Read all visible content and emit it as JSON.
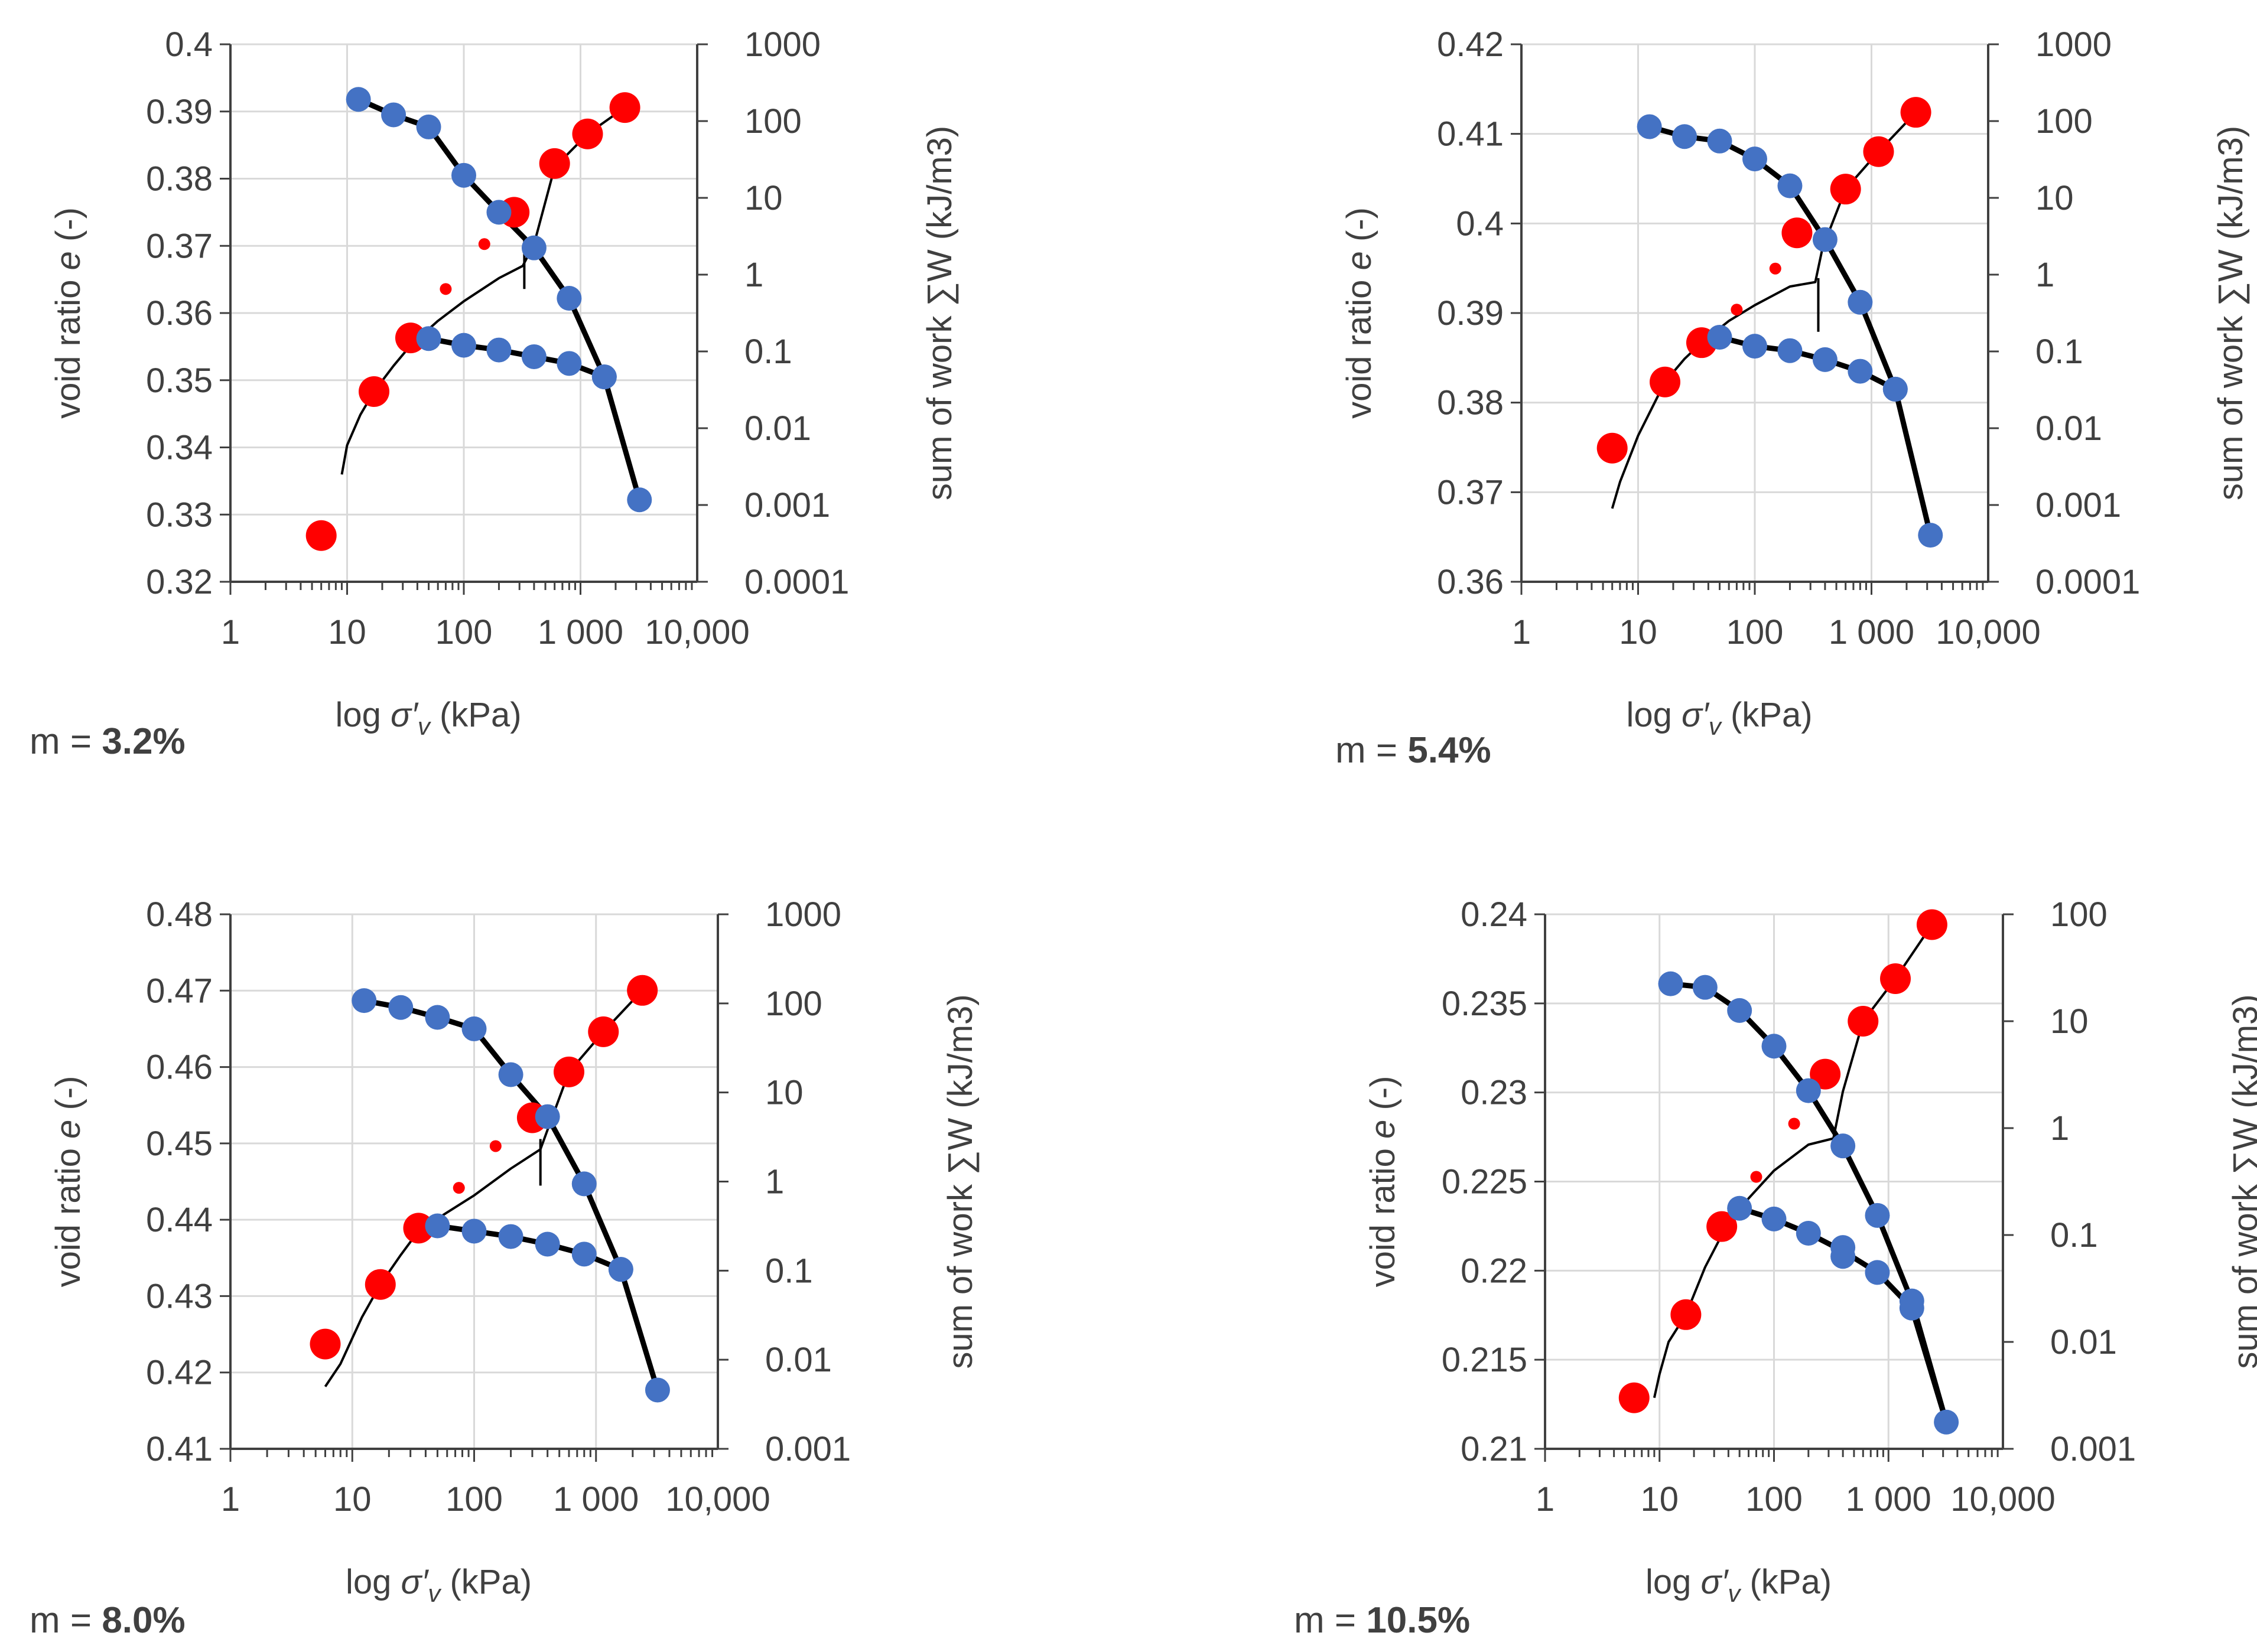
{
  "chart_data": [
    {
      "type": "scatter",
      "m_prefix": "m = ",
      "m_value": "3.2%",
      "xlabel_prefix": "log ",
      "xlabel_symbol": "σ′",
      "xlabel_sub": "v",
      "xlabel_unit": " (kPa)",
      "ylabel_prefix": "void ratio ",
      "ylabel_symbol": "e",
      "ylabel_unit": " (-)",
      "y2label": "sum of work ∑W (kJ/m3)",
      "x_ticks": [
        {
          "v": 1,
          "label": "1"
        },
        {
          "v": 10,
          "label": "10"
        },
        {
          "v": 100,
          "label": "100"
        },
        {
          "v": 1000,
          "label": "1 000"
        },
        {
          "v": 10000,
          "label": "10,000"
        }
      ],
      "xlim": [
        1,
        10000
      ],
      "ylim": [
        0.32,
        0.4
      ],
      "y_ticks": [
        "0.32",
        "0.33",
        "0.34",
        "0.35",
        "0.36",
        "0.37",
        "0.38",
        "0.39",
        "0.4"
      ],
      "y2lim": [
        0.0001,
        1000
      ],
      "y2_ticks": [
        "0.0001",
        "0.001",
        "0.01",
        "0.1",
        "1",
        "10",
        "100",
        "1000"
      ],
      "void_ratio_points": [
        [
          12.5,
          0.3918
        ],
        [
          25,
          0.3895
        ],
        [
          50,
          0.3877
        ],
        [
          100,
          0.3805
        ],
        [
          200,
          0.375
        ],
        [
          400,
          0.3697
        ],
        [
          800,
          0.3622
        ],
        [
          1600,
          0.3505
        ],
        [
          3200,
          0.3322
        ],
        [
          1600,
          0.3505
        ],
        [
          800,
          0.3525
        ],
        [
          400,
          0.3535
        ],
        [
          200,
          0.3545
        ],
        [
          100,
          0.3552
        ],
        [
          50,
          0.3562
        ]
      ],
      "void_ratio_line": [
        [
          12.5,
          0.3918
        ],
        [
          25,
          0.3895
        ],
        [
          50,
          0.3877
        ],
        [
          100,
          0.3805
        ],
        [
          200,
          0.375
        ],
        [
          400,
          0.3697
        ],
        [
          800,
          0.3622
        ],
        [
          1600,
          0.3505
        ],
        [
          3200,
          0.3322
        ],
        [
          1600,
          0.3505
        ],
        [
          800,
          0.3525
        ],
        [
          400,
          0.3535
        ],
        [
          200,
          0.3545
        ],
        [
          100,
          0.3552
        ],
        [
          50,
          0.3562
        ]
      ],
      "work_points": [
        [
          6,
          0.0004
        ],
        [
          17,
          0.03
        ],
        [
          35,
          0.15
        ],
        [
          270,
          6.5
        ],
        [
          600,
          28
        ],
        [
          1150,
          68
        ],
        [
          2400,
          150
        ]
      ],
      "work_small_points": [
        [
          70,
          0.65
        ],
        [
          150,
          2.5
        ]
      ],
      "work_curve": [
        [
          9,
          0.0025
        ],
        [
          10,
          0.006
        ],
        [
          13,
          0.015
        ],
        [
          17,
          0.03
        ],
        [
          25,
          0.065
        ],
        [
          35,
          0.12
        ],
        [
          60,
          0.25
        ],
        [
          100,
          0.45
        ],
        [
          200,
          0.9
        ],
        [
          320,
          1.3
        ],
        [
          400,
          2.5
        ],
        [
          600,
          25
        ],
        [
          1150,
          68
        ],
        [
          2400,
          150
        ]
      ],
      "work_tangent": [
        [
          330,
          0.65
        ],
        [
          330,
          3.0
        ]
      ]
    },
    {
      "type": "scatter",
      "m_prefix": "m = ",
      "m_value": "5.4%",
      "xlabel_prefix": "log ",
      "xlabel_symbol": "σ′",
      "xlabel_sub": "v",
      "xlabel_unit": " (kPa)",
      "ylabel_prefix": "void ratio ",
      "ylabel_symbol": "e",
      "ylabel_unit": " (-)",
      "y2label": "sum of work ∑W (kJ/m3)",
      "x_ticks": [
        {
          "v": 1,
          "label": "1"
        },
        {
          "v": 10,
          "label": "10"
        },
        {
          "v": 100,
          "label": "100"
        },
        {
          "v": 1000,
          "label": "1 000"
        },
        {
          "v": 10000,
          "label": "10,000"
        }
      ],
      "xlim": [
        1,
        10000
      ],
      "ylim": [
        0.36,
        0.42
      ],
      "y_ticks": [
        "0.36",
        "0.37",
        "0.38",
        "0.39",
        "0.4",
        "0.41",
        "0.42"
      ],
      "y2lim": [
        0.0001,
        1000
      ],
      "y2_ticks": [
        "0.0001",
        "0.001",
        "0.01",
        "0.1",
        "1",
        "10",
        "100",
        "1000"
      ],
      "void_ratio_points": [
        [
          12.5,
          0.4108
        ],
        [
          25,
          0.4097
        ],
        [
          50,
          0.4092
        ],
        [
          100,
          0.4072
        ],
        [
          200,
          0.4042
        ],
        [
          400,
          0.3982
        ],
        [
          800,
          0.3912
        ],
        [
          1600,
          0.3815
        ],
        [
          3200,
          0.3652
        ],
        [
          1600,
          0.3815
        ],
        [
          800,
          0.3835
        ],
        [
          400,
          0.3848
        ],
        [
          200,
          0.3858
        ],
        [
          100,
          0.3863
        ],
        [
          50,
          0.3873
        ]
      ],
      "void_ratio_line": [
        [
          12.5,
          0.4108
        ],
        [
          25,
          0.4097
        ],
        [
          50,
          0.4092
        ],
        [
          100,
          0.4072
        ],
        [
          200,
          0.4042
        ],
        [
          400,
          0.3982
        ],
        [
          800,
          0.3912
        ],
        [
          1600,
          0.3815
        ],
        [
          3200,
          0.3652
        ],
        [
          1600,
          0.3815
        ],
        [
          800,
          0.3835
        ],
        [
          400,
          0.3848
        ],
        [
          200,
          0.3858
        ],
        [
          100,
          0.3863
        ],
        [
          50,
          0.3873
        ]
      ],
      "work_points": [
        [
          6,
          0.0055
        ],
        [
          17,
          0.04
        ],
        [
          35,
          0.13
        ],
        [
          230,
          3.5
        ],
        [
          600,
          13
        ],
        [
          1150,
          40
        ],
        [
          2400,
          130
        ]
      ],
      "work_small_points": [
        [
          70,
          0.35
        ],
        [
          150,
          1.2
        ]
      ],
      "work_curve": [
        [
          6,
          0.0009
        ],
        [
          7,
          0.002
        ],
        [
          10,
          0.008
        ],
        [
          17,
          0.04
        ],
        [
          25,
          0.08
        ],
        [
          35,
          0.13
        ],
        [
          60,
          0.25
        ],
        [
          100,
          0.4
        ],
        [
          200,
          0.7
        ],
        [
          330,
          0.8
        ],
        [
          380,
          2.2
        ],
        [
          600,
          13
        ],
        [
          1150,
          40
        ],
        [
          2400,
          130
        ]
      ],
      "work_tangent": [
        [
          350,
          0.18
        ],
        [
          350,
          0.9
        ]
      ]
    },
    {
      "type": "scatter",
      "m_prefix": "m = ",
      "m_value": "8.0%",
      "xlabel_prefix": "log ",
      "xlabel_symbol": "σ′",
      "xlabel_sub": "v",
      "xlabel_unit": " (kPa)",
      "ylabel_prefix": "void ratio ",
      "ylabel_symbol": "e",
      "ylabel_unit": " (-)",
      "y2label": "sum of work ∑W (kJ/m3)",
      "x_ticks": [
        {
          "v": 1,
          "label": "1"
        },
        {
          "v": 10,
          "label": "10"
        },
        {
          "v": 100,
          "label": "100"
        },
        {
          "v": 1000,
          "label": "1 000"
        },
        {
          "v": 10000,
          "label": "10,000"
        }
      ],
      "xlim": [
        1,
        10000
      ],
      "ylim": [
        0.41,
        0.48
      ],
      "y_ticks": [
        "0.41",
        "0.42",
        "0.43",
        "0.44",
        "0.45",
        "0.46",
        "0.47",
        "0.48"
      ],
      "y2lim": [
        0.001,
        1000
      ],
      "y2_ticks": [
        "0.001",
        "0.01",
        "0.1",
        "1",
        "10",
        "100",
        "1000"
      ],
      "void_ratio_points": [
        [
          12.5,
          0.4687
        ],
        [
          25,
          0.4678
        ],
        [
          50,
          0.4665
        ],
        [
          100,
          0.465
        ],
        [
          200,
          0.459
        ],
        [
          400,
          0.4535
        ],
        [
          800,
          0.4447
        ],
        [
          1600,
          0.4335
        ],
        [
          3200,
          0.4177
        ],
        [
          1600,
          0.4335
        ],
        [
          800,
          0.4355
        ],
        [
          400,
          0.4368
        ],
        [
          200,
          0.4378
        ],
        [
          100,
          0.4385
        ],
        [
          50,
          0.4392
        ]
      ],
      "void_ratio_line": [
        [
          12.5,
          0.4687
        ],
        [
          25,
          0.4678
        ],
        [
          50,
          0.4665
        ],
        [
          100,
          0.465
        ],
        [
          200,
          0.459
        ],
        [
          400,
          0.4535
        ],
        [
          800,
          0.4447
        ],
        [
          1600,
          0.4335
        ],
        [
          3200,
          0.4177
        ],
        [
          1600,
          0.4335
        ],
        [
          800,
          0.4355
        ],
        [
          400,
          0.4368
        ],
        [
          200,
          0.4378
        ],
        [
          100,
          0.4385
        ],
        [
          50,
          0.4392
        ]
      ],
      "work_points": [
        [
          6,
          0.015
        ],
        [
          17,
          0.07
        ],
        [
          35,
          0.3
        ],
        [
          300,
          5.2
        ],
        [
          600,
          17
        ],
        [
          1150,
          48
        ],
        [
          2400,
          140
        ]
      ],
      "work_small_points": [
        [
          75,
          0.85
        ],
        [
          150,
          2.5
        ]
      ],
      "work_curve": [
        [
          6,
          0.005
        ],
        [
          8,
          0.009
        ],
        [
          12,
          0.03
        ],
        [
          17,
          0.07
        ],
        [
          25,
          0.15
        ],
        [
          35,
          0.28
        ],
        [
          60,
          0.45
        ],
        [
          100,
          0.7
        ],
        [
          200,
          1.4
        ],
        [
          350,
          2.3
        ],
        [
          400,
          3.8
        ],
        [
          600,
          17
        ],
        [
          1150,
          48
        ],
        [
          2400,
          140
        ]
      ],
      "work_tangent": [
        [
          350,
          0.9
        ],
        [
          350,
          3.0
        ]
      ]
    },
    {
      "type": "scatter",
      "m_prefix": "m = ",
      "m_value": "10.5%",
      "xlabel_prefix": "log ",
      "xlabel_symbol": "σ′",
      "xlabel_sub": "v",
      "xlabel_unit": " (kPa)",
      "ylabel_prefix": "void ratio ",
      "ylabel_symbol": "e",
      "ylabel_unit": " (-)",
      "y2label": "sum of work ∑W (kJ/m3)",
      "x_ticks": [
        {
          "v": 1,
          "label": "1"
        },
        {
          "v": 10,
          "label": "10"
        },
        {
          "v": 100,
          "label": "100"
        },
        {
          "v": 1000,
          "label": "1 000"
        },
        {
          "v": 10000,
          "label": "10,000"
        }
      ],
      "xlim": [
        1,
        10000
      ],
      "ylim": [
        0.21,
        0.24
      ],
      "y_ticks": [
        "0.21",
        "0.215",
        "0.22",
        "0.225",
        "0.23",
        "0.235",
        "0.24"
      ],
      "y2lim": [
        0.001,
        100
      ],
      "y2_ticks": [
        "0.001",
        "0.01",
        "0.1",
        "1",
        "10",
        "100"
      ],
      "void_ratio_points": [
        [
          12.5,
          0.2361
        ],
        [
          25,
          0.2359
        ],
        [
          50,
          0.2346
        ],
        [
          100,
          0.2326
        ],
        [
          200,
          0.2301
        ],
        [
          400,
          0.227
        ],
        [
          800,
          0.2231
        ],
        [
          1600,
          0.2183
        ],
        [
          3200,
          0.2115
        ],
        [
          1600,
          0.2179
        ],
        [
          800,
          0.2199
        ],
        [
          400,
          0.2208
        ],
        [
          400,
          0.2213
        ],
        [
          200,
          0.2221
        ],
        [
          100,
          0.2229
        ],
        [
          50,
          0.2235
        ]
      ],
      "void_ratio_line": [
        [
          12.5,
          0.2361
        ],
        [
          25,
          0.2359
        ],
        [
          50,
          0.2346
        ],
        [
          100,
          0.2326
        ],
        [
          200,
          0.2301
        ],
        [
          400,
          0.227
        ],
        [
          800,
          0.2231
        ],
        [
          1600,
          0.2183
        ],
        [
          3200,
          0.2115
        ],
        [
          1600,
          0.2179
        ],
        [
          800,
          0.2199
        ],
        [
          400,
          0.2211
        ],
        [
          200,
          0.2221
        ],
        [
          100,
          0.2229
        ],
        [
          50,
          0.2235
        ]
      ],
      "work_points": [
        [
          6,
          0.003
        ],
        [
          17,
          0.018
        ],
        [
          35,
          0.12
        ],
        [
          280,
          3.2
        ],
        [
          600,
          10
        ],
        [
          1150,
          25
        ],
        [
          2400,
          80
        ]
      ],
      "work_small_points": [
        [
          70,
          0.35
        ],
        [
          150,
          1.1
        ]
      ],
      "work_curve": [
        [
          9,
          0.003
        ],
        [
          10,
          0.005
        ],
        [
          12,
          0.01
        ],
        [
          17,
          0.018
        ],
        [
          25,
          0.05
        ],
        [
          35,
          0.1
        ],
        [
          60,
          0.22
        ],
        [
          100,
          0.4
        ],
        [
          200,
          0.7
        ],
        [
          330,
          0.8
        ],
        [
          400,
          2.2
        ],
        [
          600,
          10
        ],
        [
          1150,
          25
        ],
        [
          2400,
          80
        ]
      ],
      "work_tangent": [
        [
          330,
          0.8
        ],
        [
          330,
          0.8
        ]
      ]
    }
  ]
}
